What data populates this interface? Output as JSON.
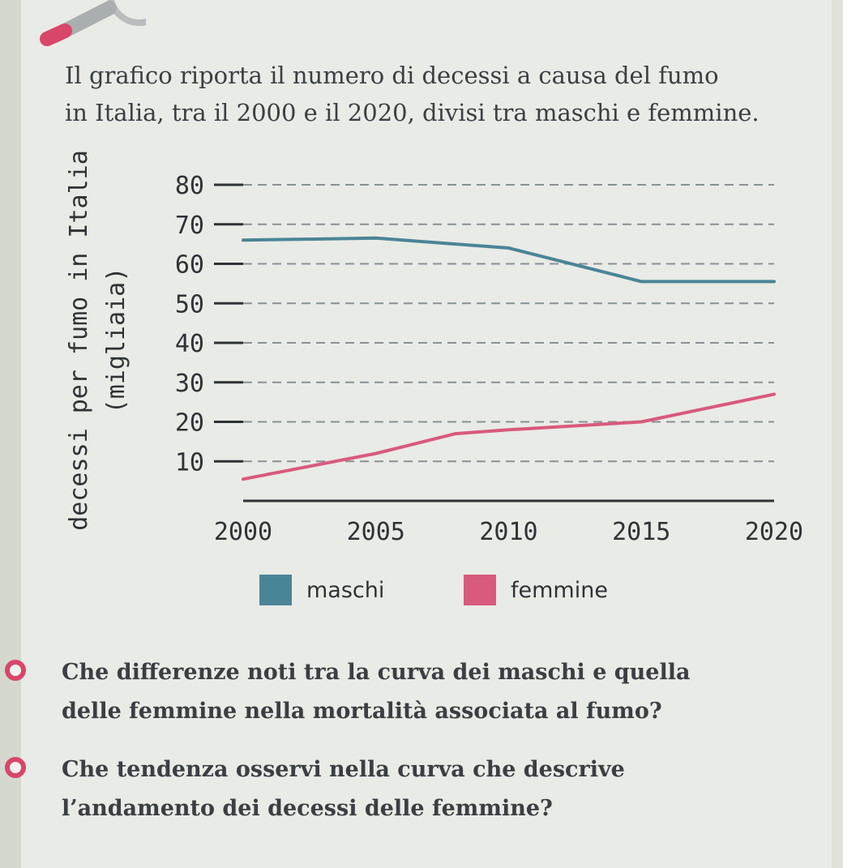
{
  "intro": {
    "line1": "Il grafico riporta il numero di decessi a causa del fumo",
    "line2": "in Italia, tra il 2000 e il 2020, divisi tra maschi e femmine."
  },
  "chart_data": {
    "type": "line",
    "x": [
      2000,
      2005,
      2008,
      2010,
      2015,
      2020
    ],
    "x_ticks": [
      "2000",
      "2005",
      "2010",
      "2015",
      "2020"
    ],
    "y_ticks": [
      "10",
      "20",
      "30",
      "40",
      "50",
      "60",
      "70",
      "80"
    ],
    "ylabel": "decessi per fumo in Italia",
    "ylabel_unit": "(migliaia)",
    "ylim": [
      0,
      80
    ],
    "xlim": [
      2000,
      2020
    ],
    "grid": "dashed horizontal",
    "legend_position": "bottom",
    "series": [
      {
        "name": "maschi",
        "color": "#4a8597",
        "points": [
          [
            2000,
            66
          ],
          [
            2005,
            66.5
          ],
          [
            2010,
            64
          ],
          [
            2015,
            55.5
          ],
          [
            2020,
            55.5
          ]
        ]
      },
      {
        "name": "femmine",
        "color": "#d85a7c",
        "points": [
          [
            2000,
            5.5
          ],
          [
            2005,
            12
          ],
          [
            2008,
            17
          ],
          [
            2010,
            18
          ],
          [
            2015,
            20
          ],
          [
            2020,
            27
          ]
        ]
      }
    ]
  },
  "questions": [
    {
      "line1": "Che differenze noti tra la curva dei maschi e quella",
      "line2": "delle femmine nella mortalità associata al fumo?"
    },
    {
      "line1": "Che tendenza osservi nella curva che descrive",
      "line2": "l’andamento dei decessi delle femmine?"
    }
  ],
  "colors": {
    "accent": "#d8466a",
    "paper": "#e9ebe6",
    "text": "#3b3f43"
  }
}
